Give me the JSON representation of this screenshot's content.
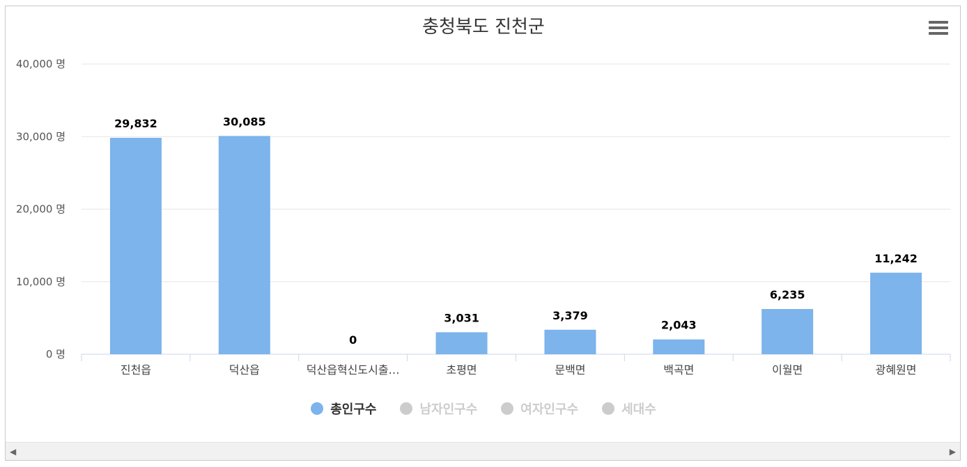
{
  "chart_data": {
    "type": "bar",
    "title": "충청북도 진천군",
    "categories": [
      "진천읍",
      "덕산읍",
      "덕산읍혁신도시출…",
      "초평면",
      "문백면",
      "백곡면",
      "이월면",
      "광혜원면"
    ],
    "series": [
      {
        "name": "총인구수",
        "values": [
          29832,
          30085,
          0,
          3031,
          3379,
          2043,
          6235,
          11242
        ],
        "color": "#7cb4eb",
        "visible": true
      }
    ],
    "data_labels": [
      "29,832",
      "30,085",
      "0",
      "3,031",
      "3,379",
      "2,043",
      "6,235",
      "11,242"
    ],
    "ylim": [
      0,
      40000
    ],
    "yticks": [
      0,
      10000,
      20000,
      30000,
      40000
    ],
    "ytick_labels": [
      "0 명",
      "10,000 명",
      "20,000 명",
      "30,000 명",
      "40,000 명"
    ],
    "xlabel": "",
    "ylabel": "",
    "grid": true,
    "legend_position": "bottom-center"
  },
  "legend": {
    "items": [
      {
        "label": "총인구수",
        "color": "#7cb4eb",
        "text_color": "#333333",
        "active": true
      },
      {
        "label": "남자인구수",
        "color": "#cccccc",
        "text_color": "#cccccc",
        "active": false
      },
      {
        "label": "여자인구수",
        "color": "#cccccc",
        "text_color": "#cccccc",
        "active": false
      },
      {
        "label": "세대수",
        "color": "#cccccc",
        "text_color": "#cccccc",
        "active": false
      }
    ]
  },
  "toolbar": {
    "menu_icon": "hamburger-menu-icon"
  },
  "scrollbar": {
    "left_icon": "◀",
    "right_icon": "▶"
  }
}
